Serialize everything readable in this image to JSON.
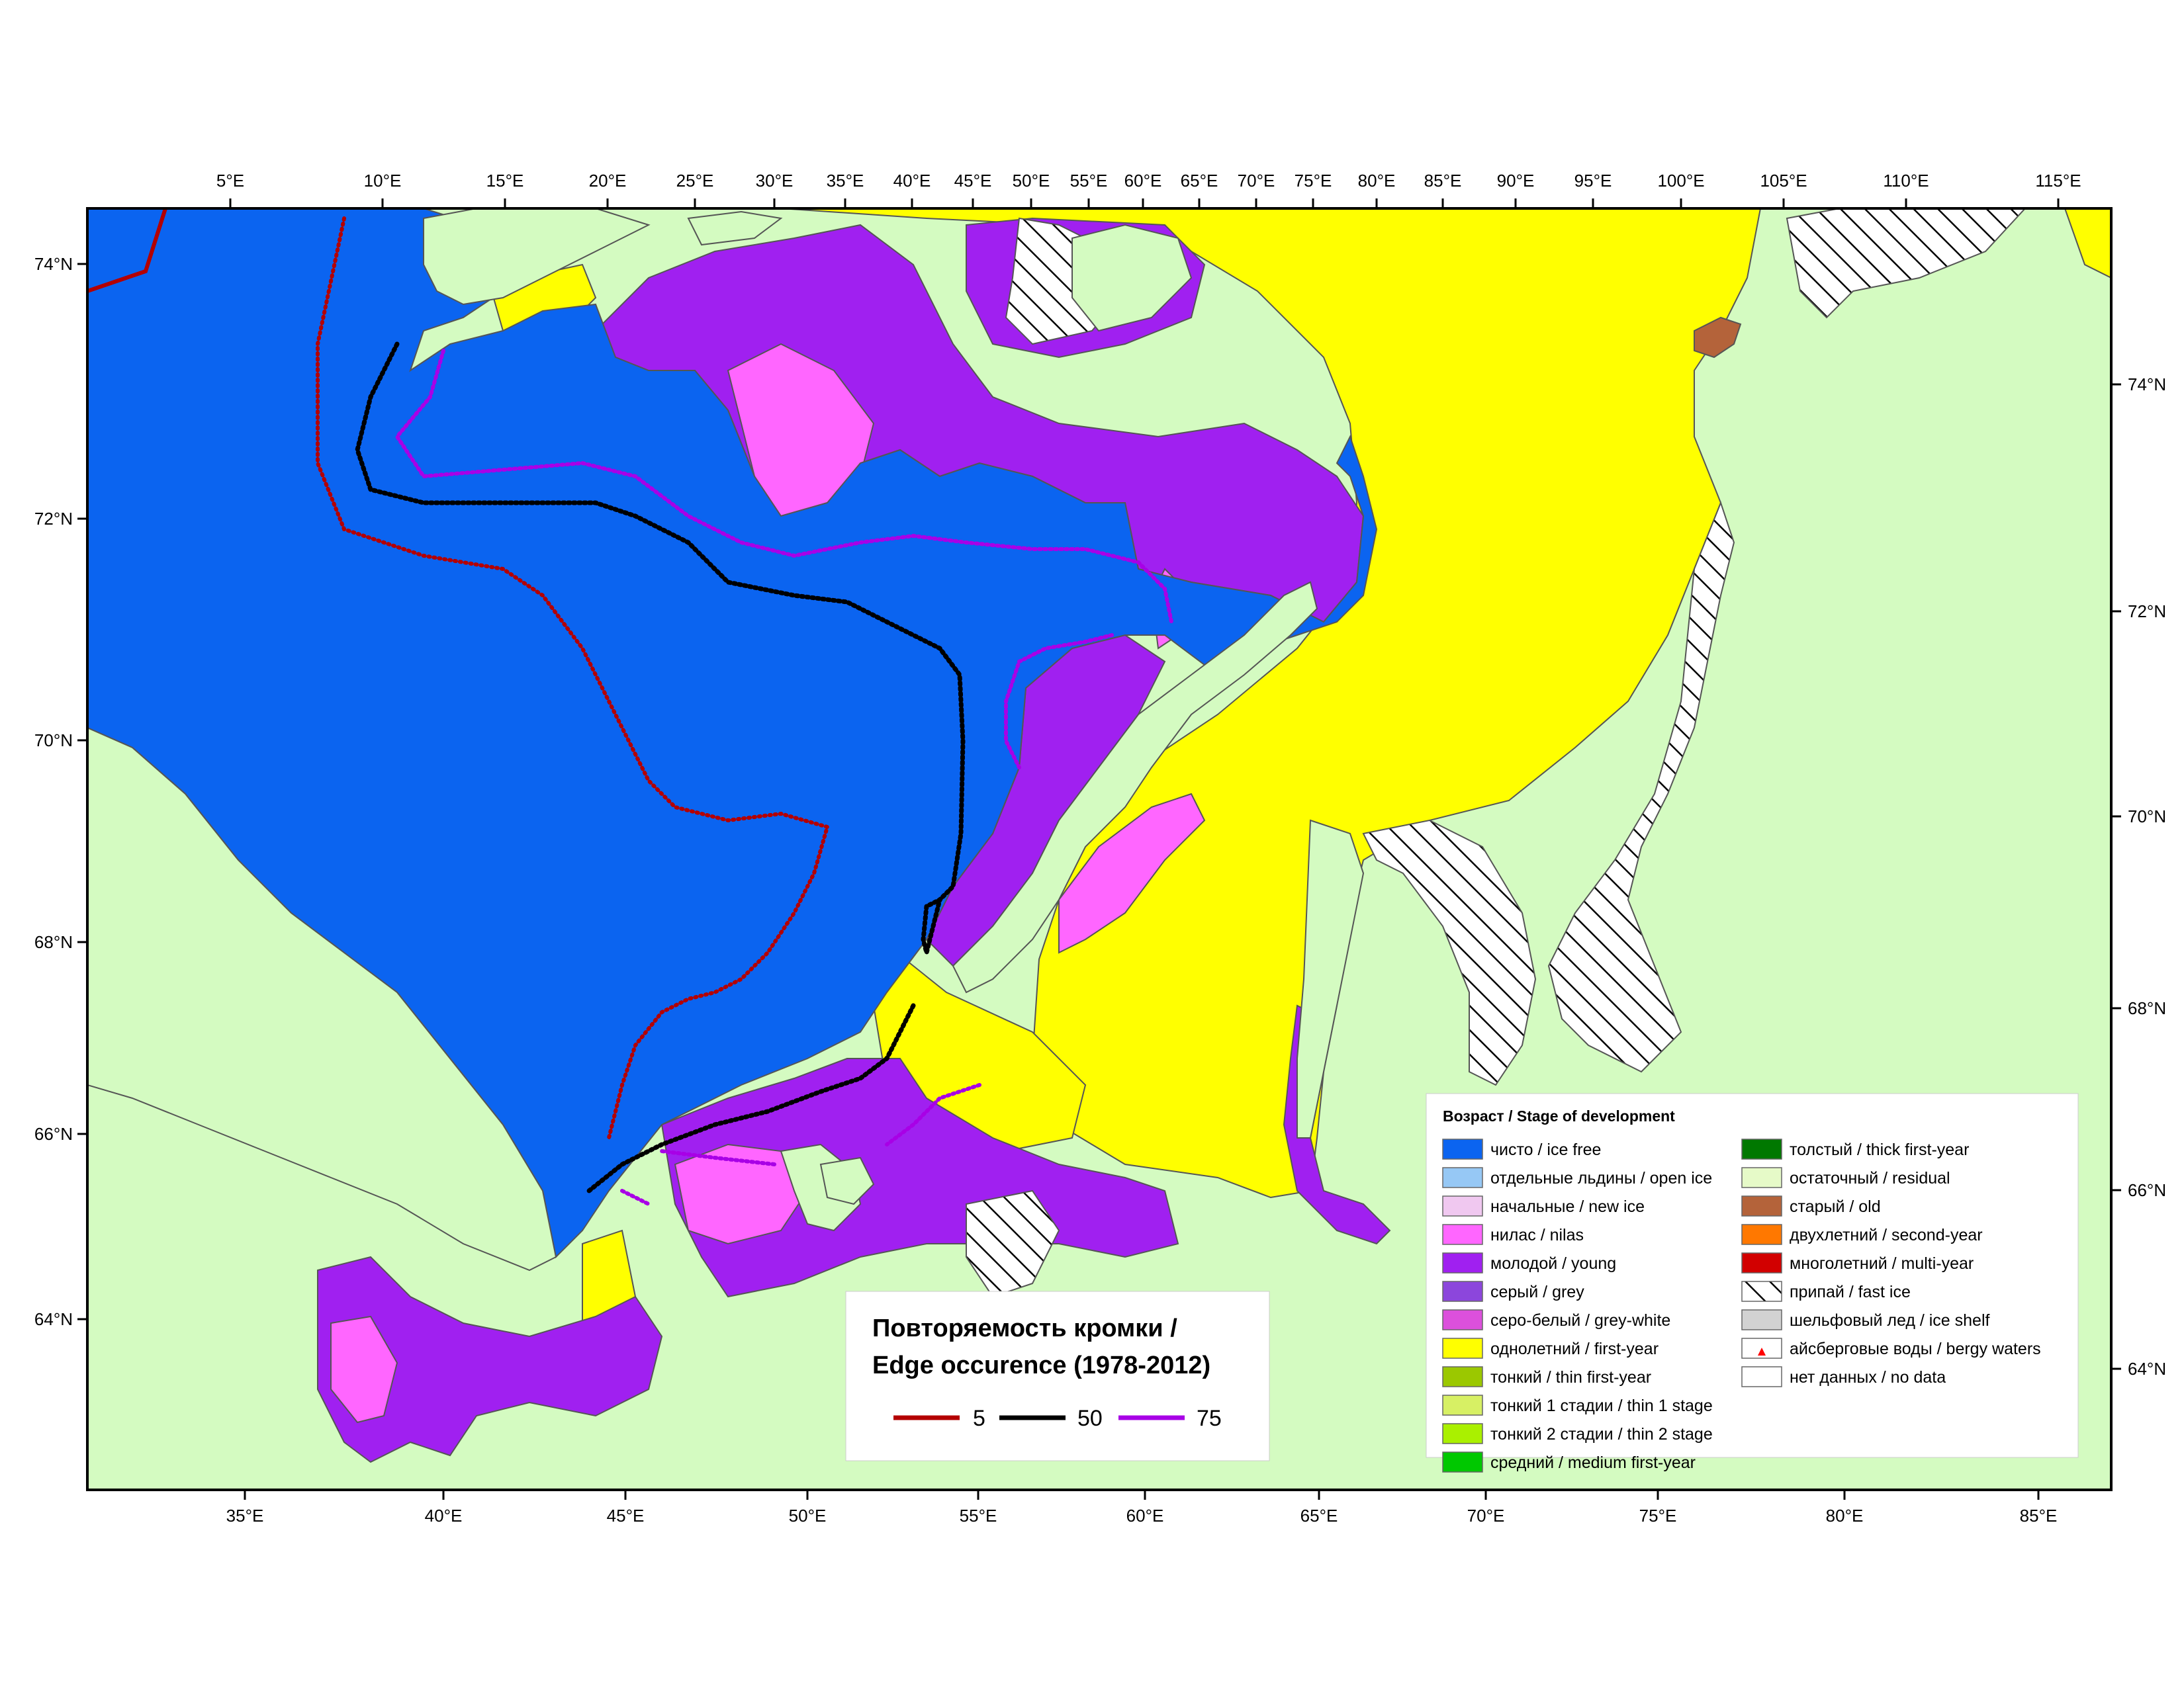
{
  "map": {
    "colors": {
      "land": "#d4fbc1",
      "ice_free": "#0b64f0",
      "first_year": "#ffff00",
      "young": "#a020f0",
      "nilas": "#ff66ff",
      "old": "#b4633a",
      "coast": "#555555"
    },
    "top_longitudes": [
      "5°E",
      "10°E",
      "15°E",
      "20°E",
      "25°E",
      "30°E",
      "35°E",
      "40°E",
      "45°E",
      "50°E",
      "55°E",
      "60°E",
      "65°E",
      "70°E",
      "75°E",
      "80°E",
      "85°E",
      "90°E",
      "95°E",
      "100°E",
      "105°E",
      "110°E",
      "115°E"
    ],
    "bottom_longitudes": [
      "35°E",
      "40°E",
      "45°E",
      "50°E",
      "55°E",
      "60°E",
      "65°E",
      "70°E",
      "75°E",
      "80°E",
      "85°E"
    ],
    "left_latitudes": [
      "74°N",
      "72°N",
      "70°N",
      "68°N",
      "66°N",
      "64°N"
    ],
    "right_latitudes": [
      "74°N",
      "72°N",
      "70°N",
      "68°N",
      "66°N",
      "64°N"
    ]
  },
  "legend": {
    "title": "Возраст / Stage of development",
    "items": [
      {
        "label": "чисто / ice free",
        "color": "#0b64f0",
        "icon": "solid-swatch"
      },
      {
        "label": "отдельные льдины / open ice",
        "color": "#96c8f5",
        "icon": "solid-swatch"
      },
      {
        "label": "начальные / new ice",
        "color": "#f0c8f0",
        "icon": "solid-swatch"
      },
      {
        "label": "нилас / nilas",
        "color": "#ff66ff",
        "icon": "solid-swatch"
      },
      {
        "label": "молодой / young",
        "color": "#a020f0",
        "icon": "solid-swatch"
      },
      {
        "label": "серый / grey",
        "color": "#8c46dc",
        "icon": "solid-swatch"
      },
      {
        "label": "серо-белый / grey-white",
        "color": "#dc50dc",
        "icon": "solid-swatch"
      },
      {
        "label": "однолетний / first-year",
        "color": "#ffff00",
        "icon": "solid-swatch"
      },
      {
        "label": "тонкий / thin first-year",
        "color": "#9bc800",
        "icon": "solid-swatch"
      },
      {
        "label": "тонкий 1 стадии / thin 1 stage",
        "color": "#d7f064",
        "icon": "solid-swatch"
      },
      {
        "label": "тонкий 2 стадии / thin 2 stage",
        "color": "#aaf000",
        "icon": "solid-swatch"
      },
      {
        "label": "средний / medium first-year",
        "color": "#00c800",
        "icon": "solid-swatch"
      },
      {
        "label": "толстый / thick first-year",
        "color": "#007800",
        "icon": "solid-swatch"
      },
      {
        "label": "остаточный / residual",
        "color": "#e6fac8",
        "icon": "solid-swatch"
      },
      {
        "label": "старый / old",
        "color": "#b4633a",
        "icon": "solid-swatch"
      },
      {
        "label": "двухлетний / second-year",
        "color": "#ff7800",
        "icon": "solid-swatch"
      },
      {
        "label": "многолетний / multi-year",
        "color": "#d20000",
        "icon": "solid-swatch"
      },
      {
        "label": "припай / fast ice",
        "color": "#ffffff",
        "icon": "hatched-swatch"
      },
      {
        "label": "шельфовый лед / ice shelf",
        "color": "#d2d2d2",
        "icon": "solid-swatch"
      },
      {
        "label": "айсберговые воды / bergy waters",
        "color": "#ffffff",
        "icon": "iceberg-triangle-swatch"
      },
      {
        "label": "нет данных / no data",
        "color": "#ffffff",
        "icon": "solid-swatch"
      }
    ]
  },
  "edge_box": {
    "title_line1": "Повторяемость кромки /",
    "title_line2": "Edge occurence (1978-2012)",
    "items": [
      {
        "label": "5",
        "color": "#b40000"
      },
      {
        "label": "50",
        "color": "#000000"
      },
      {
        "label": "75",
        "color": "#a800e6"
      }
    ]
  }
}
